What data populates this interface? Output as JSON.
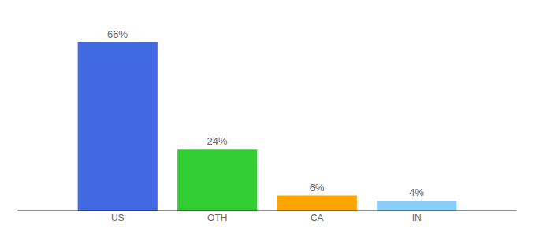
{
  "chart_data": {
    "type": "bar",
    "categories": [
      "US",
      "OTH",
      "CA",
      "IN"
    ],
    "values": [
      66,
      24,
      6,
      4
    ],
    "value_labels": [
      "66%",
      "24%",
      "6%",
      "4%"
    ],
    "colors": [
      "#4169e1",
      "#32cd32",
      "#ffa500",
      "#87cefa"
    ],
    "ylim": [
      0,
      66
    ],
    "data_labels": true,
    "tick_labels": "x",
    "grid": false
  }
}
